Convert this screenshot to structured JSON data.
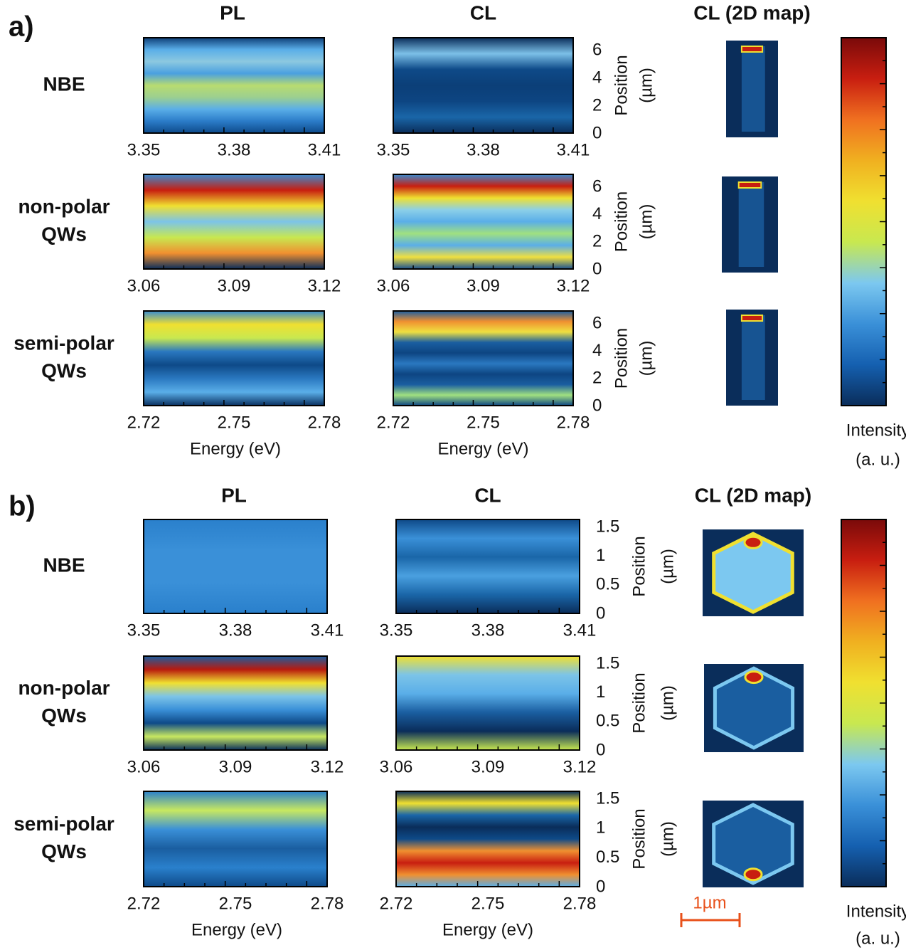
{
  "panels": [
    {
      "label": "a)",
      "column_titles": [
        "PL",
        "CL",
        "CL (2D map)"
      ],
      "rows": [
        {
          "name": [
            "NBE"
          ],
          "pl_energy_ticks": [
            "3.35",
            "3.38",
            "3.41"
          ],
          "cl_energy_ticks": [
            "3.35",
            "3.38",
            "3.41"
          ]
        },
        {
          "name": [
            "non-polar",
            "QWs"
          ],
          "pl_energy_ticks": [
            "3.06",
            "3.09",
            "3.12"
          ],
          "cl_energy_ticks": [
            "3.06",
            "3.09",
            "3.12"
          ]
        },
        {
          "name": [
            "semi-polar",
            "QWs"
          ],
          "pl_energy_ticks": [
            "2.72",
            "2.75",
            "2.78"
          ],
          "cl_energy_ticks": [
            "2.72",
            "2.75",
            "2.78"
          ]
        }
      ],
      "position_ticks": [
        "0",
        "2",
        "4",
        "6"
      ],
      "position_label": [
        "Position",
        "(µm)"
      ],
      "energy_label": "Energy (eV)",
      "colorbar_label": [
        "Intensity",
        "(a. u.)"
      ]
    },
    {
      "label": "b)",
      "column_titles": [
        "PL",
        "CL",
        "CL (2D map)"
      ],
      "rows": [
        {
          "name": [
            "NBE"
          ],
          "pl_energy_ticks": [
            "3.35",
            "3.38",
            "3.41"
          ],
          "cl_energy_ticks": [
            "3.35",
            "3.38",
            "3.41"
          ]
        },
        {
          "name": [
            "non-polar",
            "QWs"
          ],
          "pl_energy_ticks": [
            "3.06",
            "3.09",
            "3.12"
          ],
          "cl_energy_ticks": [
            "3.06",
            "3.09",
            "3.12"
          ]
        },
        {
          "name": [
            "semi-polar",
            "QWs"
          ],
          "pl_energy_ticks": [
            "2.72",
            "2.75",
            "2.78"
          ],
          "cl_energy_ticks": [
            "2.72",
            "2.75",
            "2.78"
          ]
        }
      ],
      "position_ticks": [
        "0",
        "0.5",
        "1",
        "1.5"
      ],
      "position_label": [
        "Position",
        "(µm)"
      ],
      "energy_label": "Energy (eV)",
      "colorbar_label": [
        "Intensity",
        "(a. u.)"
      ],
      "scale_bar": "1µm"
    }
  ]
}
